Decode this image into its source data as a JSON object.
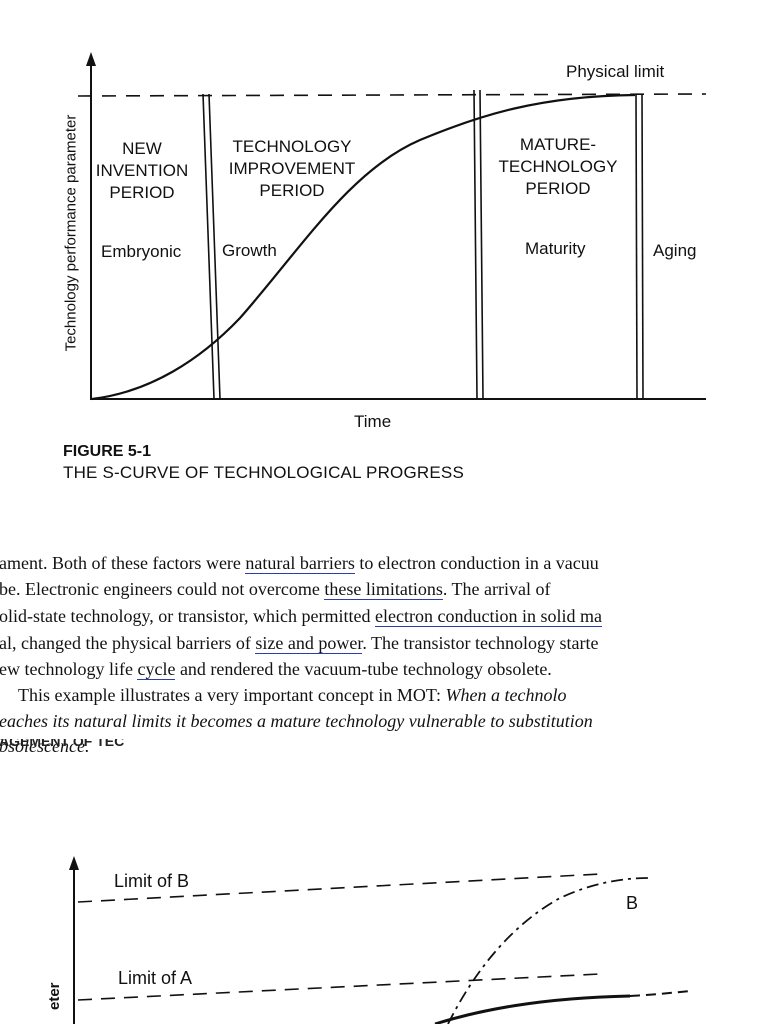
{
  "figure1": {
    "physical_limit_label": "Physical limit",
    "y_axis_label": "Technology performance parameter",
    "x_axis_label": "Time",
    "periods": [
      "NEW\nINVENTION\nPERIOD",
      "TECHNOLOGY\nIMPROVEMENT\nPERIOD",
      "MATURE-\nTECHNOLOGY\nPERIOD"
    ],
    "phases": [
      "Embryonic",
      "Growth",
      "Maturity",
      "Aging"
    ],
    "caption_number": "FIGURE 5-1",
    "caption_title": "THE S-CURVE OF TECHNOLOGICAL PROGRESS"
  },
  "paragraph": {
    "lines": [
      [
        "ament. Both of these factors were ",
        "natural barriers",
        " to electron conduction in a vacuu"
      ],
      [
        "be. Electronic engineers could not overcome ",
        "these limitations",
        ". The arrival of"
      ],
      [
        "olid-state technology, or transistor, which permitted ",
        "electron conduction in solid ma",
        ""
      ],
      [
        "al, changed the physical barriers of ",
        "size and power",
        ". The transistor technology starte"
      ],
      [
        "ew technology life ",
        "cycle",
        " and rendered the vacuum-tube technology obsolete."
      ]
    ],
    "line6_plain": "This example illustrates a very important concept in MOT:",
    "line6_italic": "When a technolo",
    "line7": "eaches its natural limits it becomes a mature technology vulnerable to substitution",
    "line8": "bsolescence."
  },
  "bleed_text": "AGEMENT OF TEC",
  "figure2": {
    "limit_b_label": "Limit of B",
    "limit_a_label": "Limit of A",
    "curve_b_label": "B",
    "y_axis_partial": "eter"
  }
}
